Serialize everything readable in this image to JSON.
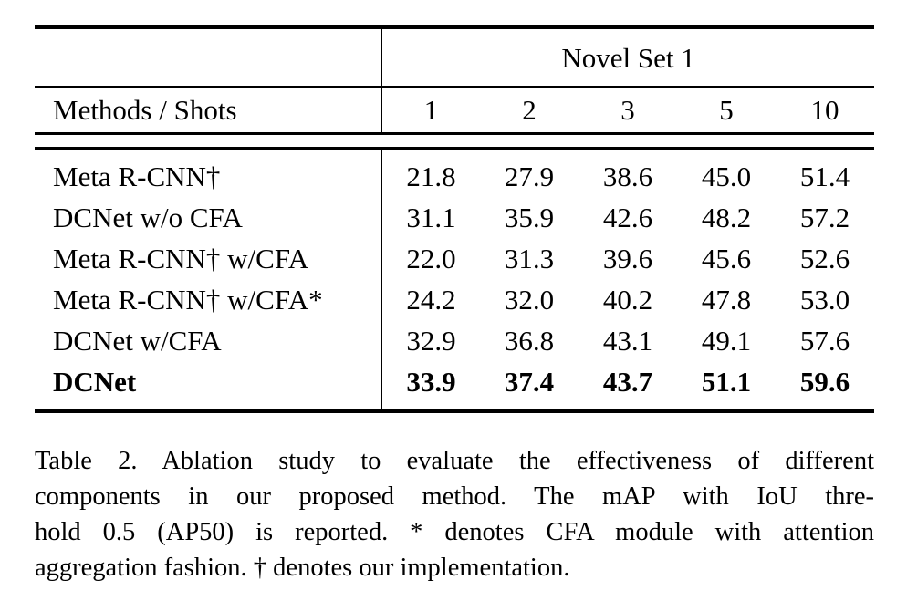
{
  "table": {
    "group_header": "Novel Set 1",
    "col_header": "Methods / Shots",
    "shot_labels": [
      "1",
      "2",
      "3",
      "5",
      "10"
    ],
    "rows": [
      {
        "method": "Meta R-CNN†",
        "values": [
          "21.8",
          "27.9",
          "38.6",
          "45.0",
          "51.4"
        ]
      },
      {
        "method": "DCNet w/o CFA",
        "values": [
          "31.1",
          "35.9",
          "42.6",
          "48.2",
          "57.2"
        ]
      },
      {
        "method": "Meta R-CNN† w/CFA",
        "values": [
          "22.0",
          "31.3",
          "39.6",
          "45.6",
          "52.6"
        ]
      },
      {
        "method": "Meta R-CNN† w/CFA*",
        "values": [
          "24.2",
          "32.0",
          "40.2",
          "47.8",
          "53.0"
        ]
      },
      {
        "method": "DCNet w/CFA",
        "values": [
          "32.9",
          "36.8",
          "43.1",
          "49.1",
          "57.6"
        ]
      },
      {
        "method": "DCNet",
        "values": [
          "33.9",
          "37.4",
          "43.7",
          "51.1",
          "59.6"
        ]
      }
    ]
  },
  "caption": {
    "lines": [
      "Table 2. Ablation study to evaluate the effectiveness of different",
      "components in our proposed method.  The mAP with IoU thre-",
      "hold 0.5 (AP50) is reported. * denotes CFA module with attention",
      "aggregation fashion. † denotes our implementation."
    ]
  }
}
